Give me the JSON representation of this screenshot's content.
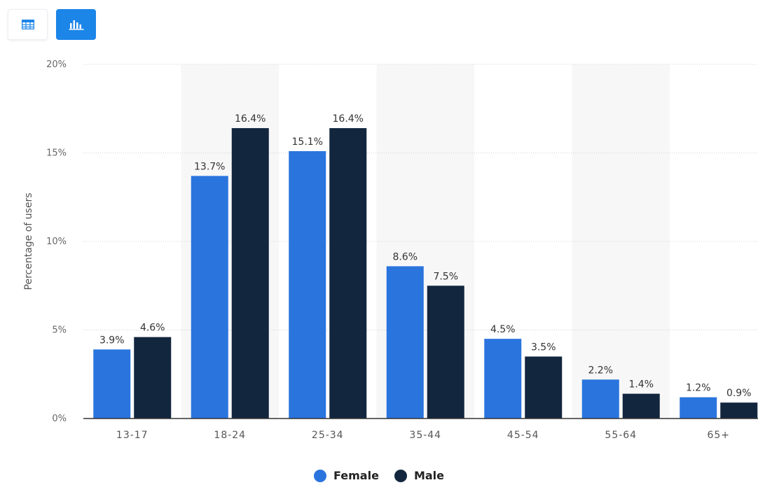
{
  "toolbar": {
    "table_icon": "table-icon",
    "chart_icon": "bar-chart-icon",
    "active": "chart",
    "accent": "#1c85e8"
  },
  "chart_data": {
    "type": "bar",
    "ylabel": "Percentage of users",
    "categories": [
      "13-17",
      "18-24",
      "25-34",
      "35-44",
      "45-54",
      "55-64",
      "65+"
    ],
    "ylim": [
      0,
      20
    ],
    "yticks": [
      0,
      5,
      10,
      15,
      20
    ],
    "ytick_labels": [
      "0%",
      "5%",
      "10%",
      "15%",
      "20%"
    ],
    "grid": true,
    "legend_position": "bottom-center",
    "series": [
      {
        "name": "Female",
        "color": "#2a74de",
        "values": [
          3.9,
          13.7,
          15.1,
          8.6,
          4.5,
          2.2,
          1.2
        ],
        "labels": [
          "3.9%",
          "13.7%",
          "15.1%",
          "8.6%",
          "4.5%",
          "2.2%",
          "1.2%"
        ]
      },
      {
        "name": "Male",
        "color": "#12263e",
        "values": [
          4.6,
          16.4,
          16.4,
          7.5,
          3.5,
          1.4,
          0.9
        ],
        "labels": [
          "4.6%",
          "16.4%",
          "16.4%",
          "7.5%",
          "3.5%",
          "1.4%",
          "0.9%"
        ]
      }
    ]
  }
}
